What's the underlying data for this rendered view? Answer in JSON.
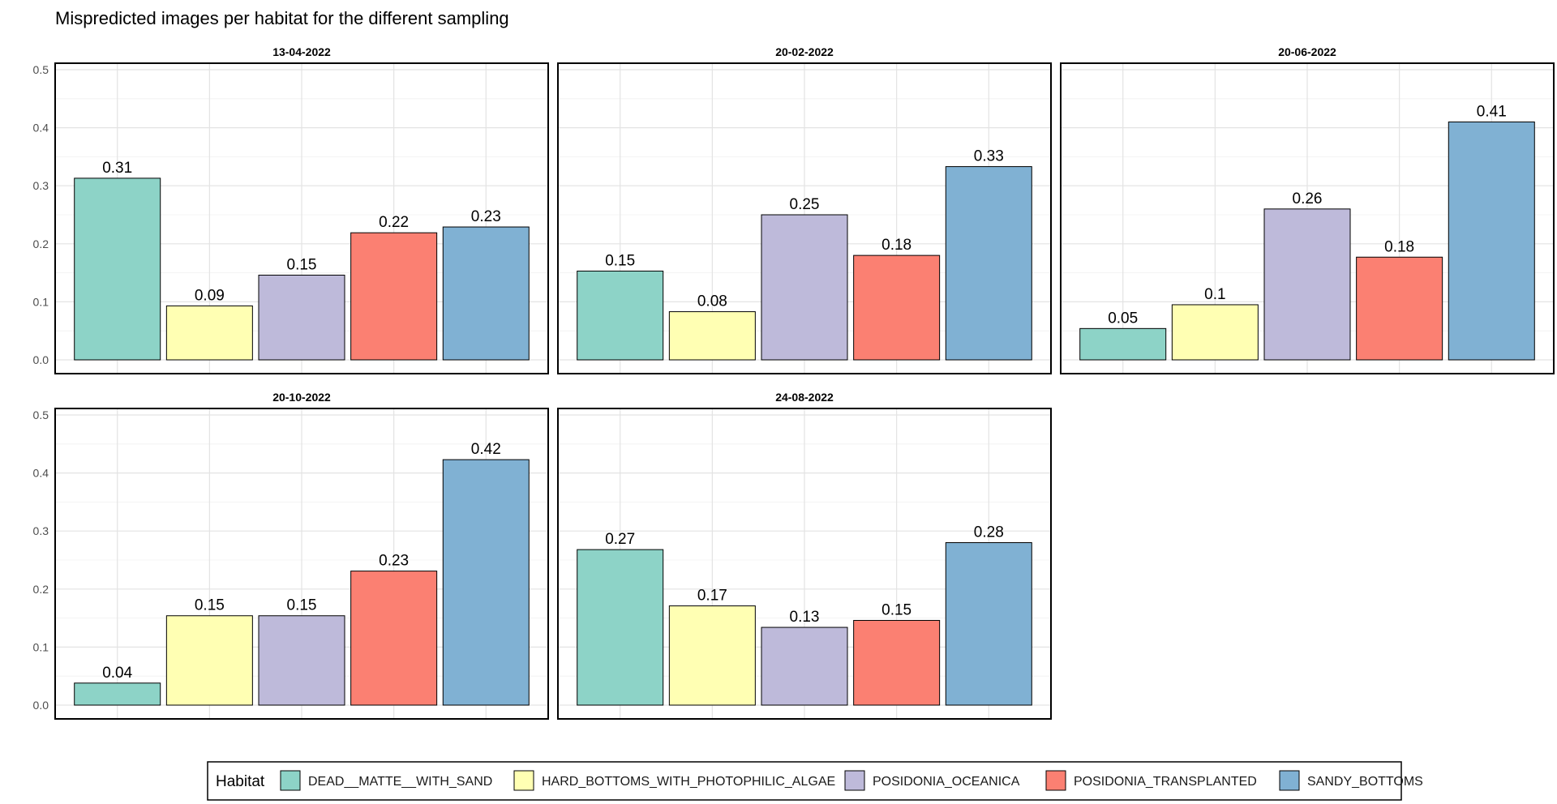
{
  "chart_data": {
    "type": "bar",
    "title": "Mispredicted images per habitat for the different sampling",
    "xlabel": "",
    "ylabel": "",
    "ylim": [
      0,
      0.5
    ],
    "yticks": [
      "0.0",
      "0.1",
      "0.2",
      "0.3",
      "0.4",
      "0.5"
    ],
    "grid": true,
    "legend_position": "bottom",
    "legend_title": "Habitat",
    "categories": [
      "DEAD__MATTE__WITH_SAND",
      "HARD_BOTTOMS_WITH_PHOTOPHILIC_ALGAE",
      "POSIDONIA_OCEANICA",
      "POSIDONIA_TRANSPLANTED",
      "SANDY_BOTTOMS"
    ],
    "colors": [
      "#8dd3c7",
      "#ffffb3",
      "#bebada",
      "#fb8072",
      "#80b1d3"
    ],
    "panels": [
      {
        "name": "13-04-2022",
        "values": [
          0.313,
          0.093,
          0.146,
          0.219,
          0.229
        ],
        "labels": [
          "0.31",
          "0.09",
          "0.15",
          "0.22",
          "0.23"
        ]
      },
      {
        "name": "20-02-2022",
        "values": [
          0.153,
          0.083,
          0.25,
          0.18,
          0.333
        ],
        "labels": [
          "0.15",
          "0.08",
          "0.25",
          "0.18",
          "0.33"
        ]
      },
      {
        "name": "20-06-2022",
        "values": [
          0.054,
          0.095,
          0.26,
          0.177,
          0.41
        ],
        "labels": [
          "0.05",
          "0.1",
          "0.26",
          "0.18",
          "0.41"
        ]
      },
      {
        "name": "20-10-2022",
        "values": [
          0.038,
          0.154,
          0.154,
          0.231,
          0.423
        ],
        "labels": [
          "0.04",
          "0.15",
          "0.15",
          "0.23",
          "0.42"
        ]
      },
      {
        "name": "24-08-2022",
        "values": [
          0.268,
          0.171,
          0.134,
          0.146,
          0.28
        ],
        "labels": [
          "0.27",
          "0.17",
          "0.13",
          "0.15",
          "0.28"
        ]
      }
    ]
  }
}
